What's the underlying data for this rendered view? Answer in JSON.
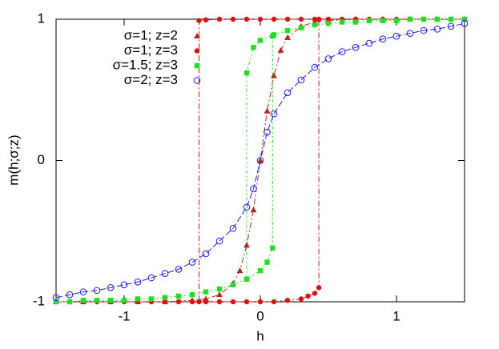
{
  "chart_data": {
    "type": "scatter",
    "xlabel": "h",
    "ylabel": "m(h;σ;z)",
    "xlim": [
      -1.5,
      1.5
    ],
    "ylim": [
      -1,
      1
    ],
    "xticks": [
      -1,
      0,
      1
    ],
    "yticks": [
      -1,
      0,
      1
    ],
    "legend": "upper left",
    "series": [
      {
        "name": "σ=1; z=2",
        "color": "#b02a20",
        "marker": "triangle",
        "x": [
          -1.5,
          -1.3,
          -1.1,
          -0.9,
          -0.7,
          -0.5,
          -0.4,
          -0.3,
          -0.2,
          -0.15,
          -0.1,
          -0.05,
          0,
          0.05,
          0.1,
          0.15,
          0.2,
          0.3,
          0.4,
          0.5,
          0.7,
          0.9,
          1.1,
          1.3,
          1.5
        ],
        "values": [
          -1,
          -1,
          -1,
          -1,
          -1,
          -0.99,
          -0.98,
          -0.95,
          -0.87,
          -0.78,
          -0.6,
          -0.35,
          0,
          0.35,
          0.6,
          0.78,
          0.87,
          0.95,
          0.98,
          0.99,
          1,
          1,
          1,
          1,
          1
        ]
      },
      {
        "name": "σ=1; z=3",
        "color": "#e01010",
        "marker": "dot",
        "x": [
          1.5,
          1.4,
          1.3,
          1.2,
          1.1,
          1,
          0.9,
          0.8,
          0.7,
          0.6,
          0.5,
          0.4,
          0.3,
          0.2,
          0.1,
          0,
          -0.1,
          -0.2,
          -0.3,
          -0.4,
          -0.45,
          -0.45,
          null,
          -1.5,
          -1.4,
          -1.3,
          -1.2,
          -1.1,
          -1,
          -0.9,
          -0.8,
          -0.7,
          -0.6,
          -0.5,
          -0.4,
          -0.3,
          -0.2,
          -0.1,
          0,
          0.1,
          0.2,
          0.3,
          0.35,
          0.4,
          0.43,
          0.43
        ],
        "values": [
          1,
          1,
          1,
          1,
          1,
          1,
          1,
          1,
          1,
          1,
          1,
          1,
          1,
          1,
          1,
          1,
          1,
          1,
          1,
          0.995,
          0.99,
          -1,
          null,
          -1,
          -1,
          -1,
          -1,
          -1,
          -1,
          -1,
          -1,
          -1,
          -1,
          -1,
          -1,
          -1,
          -1,
          -1,
          -1,
          -1,
          -0.99,
          -0.98,
          -0.96,
          -0.94,
          -0.9,
          1
        ]
      },
      {
        "name": "σ=1.5; z=3",
        "color": "#22dd22",
        "marker": "square",
        "x": [
          1.5,
          1.4,
          1.3,
          1.2,
          1.1,
          1,
          0.9,
          0.8,
          0.7,
          0.6,
          0.5,
          0.4,
          0.3,
          0.2,
          0.1,
          0,
          -0.05,
          -0.1,
          -0.1,
          null,
          -1.5,
          -1.4,
          -1.3,
          -1.2,
          -1.1,
          -1,
          -0.9,
          -0.8,
          -0.7,
          -0.6,
          -0.5,
          -0.4,
          -0.3,
          -0.2,
          -0.1,
          0,
          0.05,
          0.09,
          0.09
        ],
        "values": [
          1,
          1,
          1,
          1,
          1,
          0.99,
          0.99,
          0.99,
          0.98,
          0.98,
          0.97,
          0.96,
          0.94,
          0.92,
          0.89,
          0.85,
          0.8,
          0.62,
          -0.84,
          null,
          -1,
          -1,
          -0.99,
          -0.99,
          -0.99,
          -0.99,
          -0.98,
          -0.98,
          -0.97,
          -0.96,
          -0.95,
          -0.93,
          -0.91,
          -0.88,
          -0.84,
          -0.78,
          -0.72,
          -0.62,
          0.88
        ]
      },
      {
        "name": "σ=2; z=3",
        "color": "#1a1aff",
        "marker": "open-circle",
        "x": [
          -1.5,
          -1.4,
          -1.3,
          -1.2,
          -1.1,
          -1,
          -0.9,
          -0.8,
          -0.7,
          -0.6,
          -0.5,
          -0.4,
          -0.3,
          -0.2,
          -0.1,
          -0.05,
          0,
          0.05,
          0.1,
          0.2,
          0.3,
          0.4,
          0.5,
          0.6,
          0.7,
          0.8,
          0.9,
          1,
          1.1,
          1.2,
          1.3,
          1.4,
          1.5
        ],
        "values": [
          -0.97,
          -0.95,
          -0.93,
          -0.92,
          -0.9,
          -0.88,
          -0.86,
          -0.83,
          -0.8,
          -0.77,
          -0.72,
          -0.66,
          -0.57,
          -0.48,
          -0.33,
          -0.2,
          0,
          0.2,
          0.33,
          0.48,
          0.57,
          0.66,
          0.72,
          0.77,
          0.8,
          0.83,
          0.86,
          0.88,
          0.9,
          0.92,
          0.93,
          0.95,
          0.97
        ]
      }
    ]
  }
}
